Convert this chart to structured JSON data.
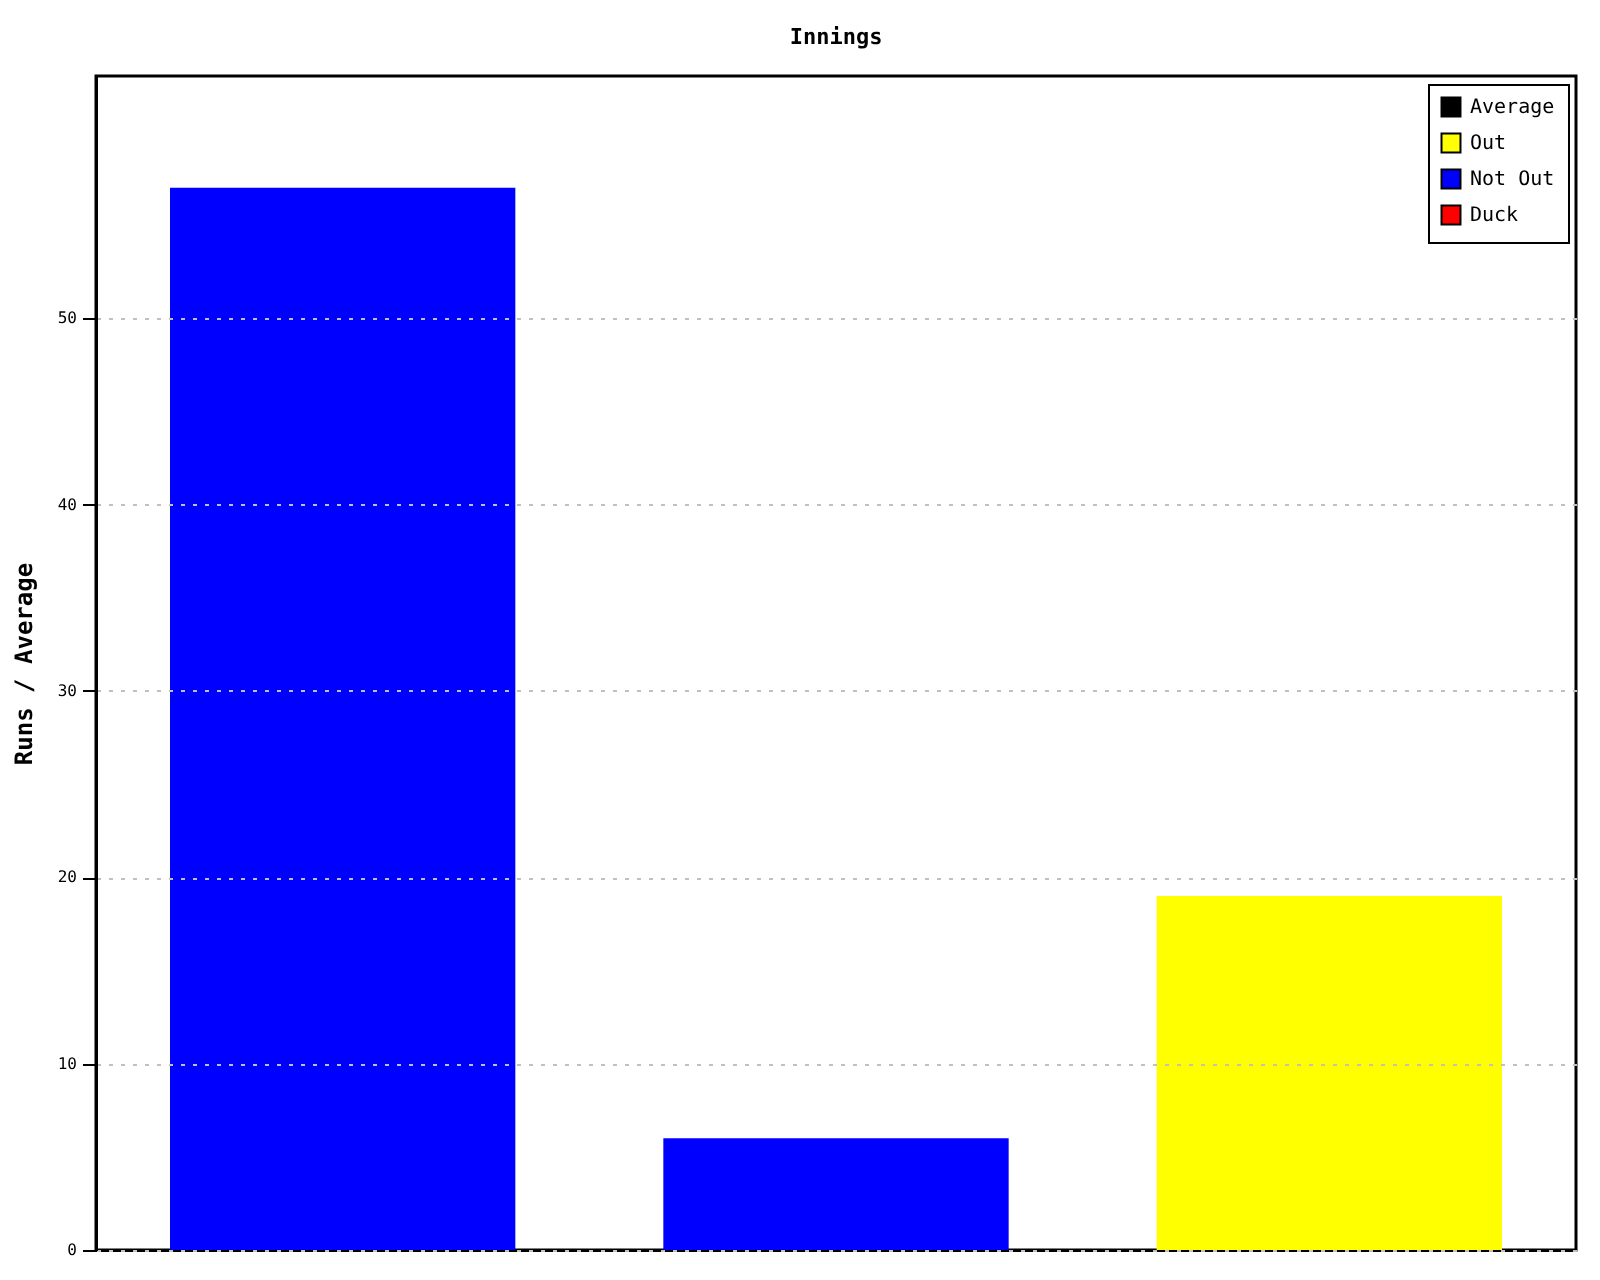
{
  "chart_data": {
    "type": "bar",
    "title": "Innings",
    "ylabel": "Runs / Average",
    "categories": [
      null,
      null,
      null
    ],
    "series": [
      {
        "name": "Average",
        "color": "#000000",
        "values": [
          null,
          null,
          null
        ]
      },
      {
        "name": "Out",
        "color": "#ffff00",
        "values": [
          null,
          null,
          19
        ]
      },
      {
        "name": "Not Out",
        "color": "#0000ff",
        "values": [
          57,
          6,
          null
        ]
      },
      {
        "name": "Duck",
        "color": "#ff0000",
        "values": [
          null,
          null,
          null
        ]
      }
    ],
    "stacked": true,
    "ylim": [
      0,
      63
    ],
    "yticks": [
      0,
      10,
      20,
      30,
      40,
      50
    ],
    "grid": "y",
    "legend": "top right",
    "tick_labels": "y"
  }
}
